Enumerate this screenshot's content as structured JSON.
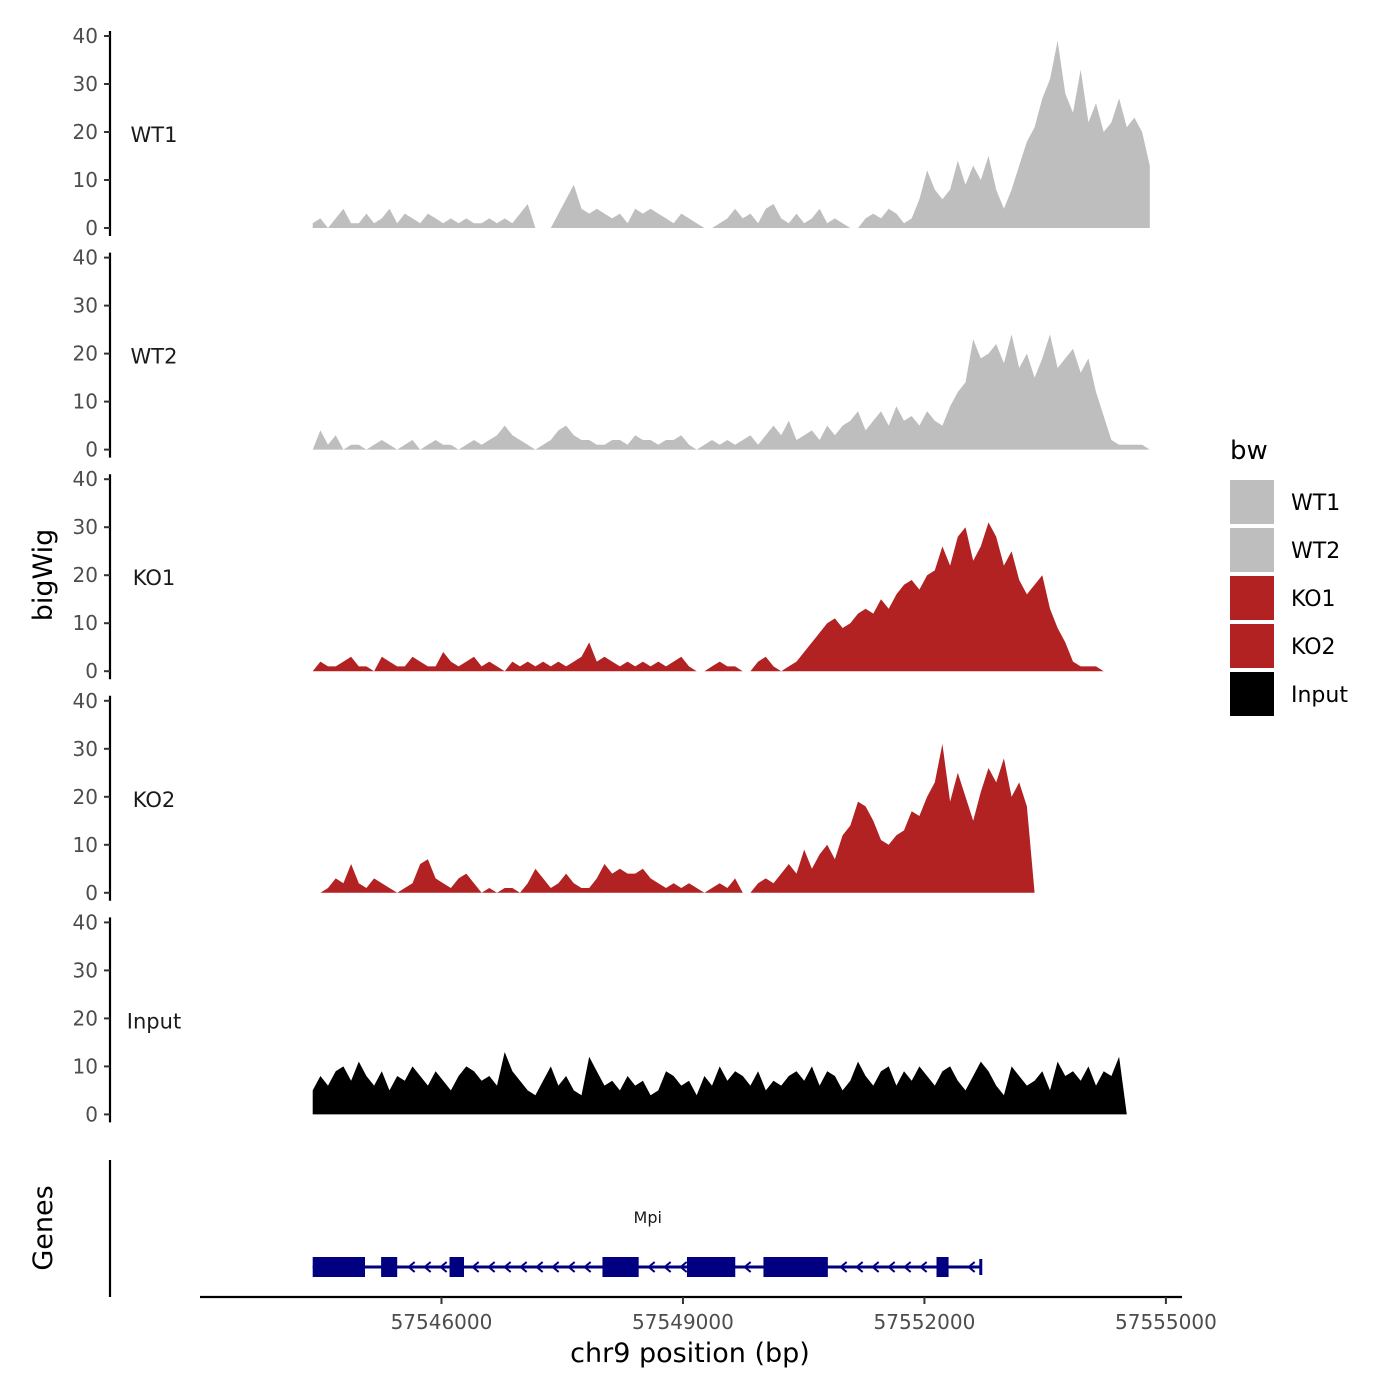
{
  "chart_data": {
    "type": "area",
    "ylabel": "bigWig",
    "xlabel": "chr9 position (bp)",
    "ylim": [
      0,
      40
    ],
    "yticks": [
      0,
      10,
      20,
      30,
      40
    ],
    "xlim": [
      57543000,
      57555200
    ],
    "xticks": [
      57546000,
      57549000,
      57552000,
      57555000
    ],
    "xtick_labels": [
      "57546000",
      "57549000",
      "57552000",
      "57555000"
    ],
    "region": [
      57544400,
      57554800
    ],
    "legend": {
      "title": "bw",
      "position": "right",
      "entries": [
        {
          "label": "WT1",
          "color": "#bebebe"
        },
        {
          "label": "WT2",
          "color": "#bebebe"
        },
        {
          "label": "KO1",
          "color": "#b22222"
        },
        {
          "label": "KO2",
          "color": "#b22222"
        },
        {
          "label": "Input",
          "color": "#000000"
        }
      ]
    },
    "series": [
      {
        "name": "WT1",
        "color": "#bebebe",
        "values": [
          1,
          2,
          0,
          2,
          4,
          1,
          1,
          3,
          1,
          2,
          4,
          1,
          3,
          2,
          1,
          3,
          2,
          1,
          2,
          1,
          2,
          1,
          1,
          2,
          1,
          2,
          1,
          3,
          5,
          0,
          0,
          0,
          3,
          6,
          9,
          4,
          3,
          4,
          3,
          2,
          3,
          1,
          4,
          3,
          4,
          3,
          2,
          1,
          3,
          2,
          1,
          0,
          0,
          1,
          2,
          4,
          2,
          3,
          1,
          4,
          5,
          2,
          1,
          3,
          1,
          2,
          4,
          1,
          2,
          1,
          0,
          0,
          2,
          3,
          2,
          4,
          3,
          1,
          2,
          6,
          12,
          8,
          6,
          8,
          14,
          9,
          13,
          10,
          15,
          8,
          4,
          8,
          13,
          18,
          21,
          27,
          31,
          39,
          28,
          24,
          33,
          22,
          26,
          20,
          22,
          27,
          21,
          23,
          20,
          13
        ]
      },
      {
        "name": "WT2",
        "color": "#bebebe",
        "values": [
          0,
          4,
          1,
          3,
          0,
          1,
          1,
          0,
          1,
          2,
          1,
          0,
          1,
          2,
          0,
          1,
          2,
          1,
          1,
          0,
          1,
          2,
          1,
          2,
          3,
          5,
          3,
          2,
          1,
          0,
          1,
          2,
          4,
          5,
          3,
          2,
          2,
          1,
          1,
          2,
          2,
          1,
          3,
          2,
          2,
          1,
          2,
          2,
          3,
          1,
          0,
          1,
          2,
          1,
          2,
          1,
          2,
          3,
          1,
          3,
          5,
          3,
          6,
          2,
          3,
          4,
          2,
          5,
          3,
          5,
          6,
          8,
          4,
          6,
          8,
          5,
          9,
          6,
          7,
          5,
          8,
          6,
          5,
          9,
          12,
          14,
          23,
          19,
          20,
          22,
          18,
          24,
          17,
          20,
          15,
          19,
          24,
          17,
          19,
          21,
          16,
          19,
          12,
          7,
          2,
          1,
          1,
          1,
          1,
          0
        ]
      },
      {
        "name": "KO1",
        "color": "#b22222",
        "values": [
          0,
          2,
          1,
          1,
          2,
          3,
          1,
          1,
          0,
          3,
          2,
          1,
          1,
          3,
          2,
          1,
          1,
          4,
          2,
          1,
          2,
          3,
          1,
          2,
          1,
          0,
          2,
          1,
          2,
          1,
          2,
          1,
          2,
          1,
          2,
          3,
          6,
          2,
          3,
          2,
          1,
          2,
          1,
          2,
          1,
          2,
          1,
          2,
          3,
          1,
          0,
          0,
          1,
          2,
          1,
          1,
          0,
          0,
          2,
          3,
          1,
          0,
          1,
          2,
          4,
          6,
          8,
          10,
          11,
          9,
          10,
          12,
          13,
          12,
          15,
          13,
          16,
          18,
          19,
          17,
          20,
          21,
          26,
          22,
          28,
          30,
          23,
          26,
          31,
          28,
          22,
          25,
          19,
          16,
          18,
          20,
          13,
          9,
          6,
          2,
          1,
          1,
          1,
          0,
          0,
          0,
          0,
          0,
          0,
          0
        ]
      },
      {
        "name": "KO2",
        "color": "#b22222",
        "values": [
          0,
          0,
          1,
          3,
          2,
          6,
          2,
          1,
          3,
          2,
          1,
          0,
          1,
          2,
          6,
          7,
          3,
          2,
          1,
          3,
          4,
          2,
          0,
          1,
          0,
          1,
          1,
          0,
          2,
          5,
          3,
          1,
          2,
          4,
          2,
          1,
          1,
          3,
          6,
          4,
          5,
          4,
          4,
          5,
          3,
          2,
          1,
          2,
          1,
          2,
          1,
          0,
          1,
          2,
          1,
          3,
          0,
          0,
          2,
          3,
          2,
          4,
          6,
          4,
          9,
          5,
          8,
          10,
          7,
          12,
          14,
          19,
          18,
          15,
          11,
          10,
          12,
          13,
          17,
          16,
          20,
          23,
          31,
          19,
          25,
          20,
          15,
          21,
          26,
          23,
          28,
          20,
          23,
          18,
          0,
          0,
          0,
          0,
          0,
          0,
          0,
          0,
          0,
          0,
          0,
          0,
          0,
          0,
          0,
          0
        ]
      },
      {
        "name": "Input",
        "color": "#000000",
        "values": [
          5,
          8,
          6,
          9,
          10,
          7,
          11,
          8,
          6,
          9,
          5,
          8,
          7,
          10,
          8,
          6,
          9,
          7,
          5,
          8,
          10,
          9,
          7,
          8,
          6,
          13,
          9,
          7,
          5,
          4,
          7,
          10,
          6,
          8,
          5,
          4,
          12,
          9,
          6,
          7,
          5,
          8,
          6,
          7,
          4,
          5,
          9,
          8,
          6,
          7,
          4,
          8,
          6,
          10,
          7,
          9,
          8,
          6,
          9,
          5,
          7,
          6,
          8,
          9,
          7,
          10,
          6,
          9,
          8,
          5,
          7,
          11,
          8,
          6,
          9,
          10,
          6,
          9,
          7,
          10,
          8,
          6,
          9,
          10,
          7,
          5,
          8,
          11,
          9,
          6,
          4,
          10,
          8,
          6,
          7,
          9,
          5,
          11,
          8,
          9,
          7,
          10,
          6,
          9,
          8,
          12,
          0,
          0,
          0,
          0
        ]
      }
    ],
    "genes": [
      {
        "name": "Mpi",
        "color": "#000080",
        "strand": "-",
        "start": 57544400,
        "end": 57552700,
        "exons": [
          [
            57544400,
            57545050
          ],
          [
            57545250,
            57545450
          ],
          [
            57546100,
            57546280
          ],
          [
            57548000,
            57548450
          ],
          [
            57549050,
            57549650
          ],
          [
            57550000,
            57550800
          ],
          [
            57552150,
            57552300
          ]
        ]
      }
    ],
    "gene_panel_label": "Genes"
  }
}
